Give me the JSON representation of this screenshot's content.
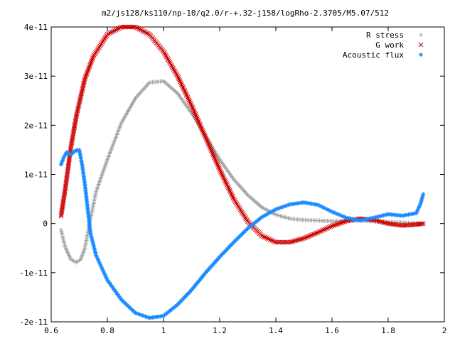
{
  "chart_data": {
    "type": "scatter",
    "title": "m2/js128/ks110/np-10/q2.0/r-+.32-j158/logRho-2.3705/M5.07/512",
    "xlabel": "",
    "ylabel": "",
    "xlim": [
      0.6,
      2.0
    ],
    "ylim": [
      -2e-11,
      4e-11
    ],
    "xticks": [
      0.6,
      0.8,
      1.0,
      1.2,
      1.4,
      1.6,
      1.8,
      2.0
    ],
    "xtick_labels": [
      "0.6",
      "0.8",
      "1",
      "1.2",
      "1.4",
      "1.6",
      "1.8",
      "2"
    ],
    "yticks": [
      -2e-11,
      -1e-11,
      0,
      1e-11,
      2e-11,
      3e-11,
      4e-11
    ],
    "ytick_labels": [
      "-2e-11",
      "-1e-11",
      "0",
      "1e-11",
      "2e-11",
      "3e-11",
      "4e-11"
    ],
    "grid": false,
    "legend_position": "top-right",
    "series": [
      {
        "name": "R stress",
        "marker": "+",
        "color": "#a0a0a0",
        "x": [
          0.635,
          0.65,
          0.67,
          0.69,
          0.705,
          0.72,
          0.74,
          0.76,
          0.8,
          0.85,
          0.9,
          0.95,
          1.0,
          1.05,
          1.1,
          1.15,
          1.2,
          1.25,
          1.3,
          1.35,
          1.4,
          1.45,
          1.5,
          1.6,
          1.7,
          1.8,
          1.9,
          1.925
        ],
        "y": [
          -1.3e-12,
          -4.8e-12,
          -7.3e-12,
          -7.9e-12,
          -7.3e-12,
          -5e-12,
          1e-12,
          6.5e-12,
          1.3e-11,
          2.05e-11,
          2.55e-11,
          2.87e-11,
          2.9e-11,
          2.65e-11,
          2.25e-11,
          1.78e-11,
          1.3e-11,
          9e-12,
          5.8e-12,
          3.3e-12,
          1.8e-12,
          1e-12,
          7e-13,
          5e-13,
          6e-13,
          3e-13,
          1e-13,
          0
        ]
      },
      {
        "name": "G work",
        "marker": "x",
        "color": "#cc0000",
        "x": [
          0.635,
          0.65,
          0.67,
          0.69,
          0.72,
          0.75,
          0.8,
          0.85,
          0.9,
          0.95,
          1.0,
          1.05,
          1.1,
          1.15,
          1.2,
          1.25,
          1.3,
          1.35,
          1.4,
          1.45,
          1.5,
          1.55,
          1.6,
          1.65,
          1.7,
          1.75,
          1.8,
          1.85,
          1.9,
          1.925
        ],
        "y": [
          1.5e-12,
          7e-12,
          1.55e-11,
          2.2e-11,
          2.95e-11,
          3.4e-11,
          3.85e-11,
          4e-11,
          4e-11,
          3.85e-11,
          3.5e-11,
          3e-11,
          2.4e-11,
          1.75e-11,
          1.1e-11,
          5e-12,
          4e-13,
          -2.5e-12,
          -3.8e-12,
          -3.8e-12,
          -3e-12,
          -1.8e-12,
          -5e-13,
          5e-13,
          1e-12,
          7e-13,
          0,
          -4e-13,
          -2e-13,
          0
        ]
      },
      {
        "name": "Acoustic flux",
        "marker": "*",
        "color": "#1a8cff",
        "x": [
          0.635,
          0.645,
          0.655,
          0.67,
          0.685,
          0.7,
          0.71,
          0.72,
          0.73,
          0.74,
          0.76,
          0.8,
          0.85,
          0.9,
          0.95,
          1.0,
          1.05,
          1.1,
          1.15,
          1.2,
          1.25,
          1.3,
          1.35,
          1.4,
          1.45,
          1.5,
          1.55,
          1.6,
          1.65,
          1.7,
          1.75,
          1.8,
          1.85,
          1.9,
          1.915,
          1.925
        ],
        "y": [
          1.2e-11,
          1.35e-11,
          1.45e-11,
          1.4e-11,
          1.48e-11,
          1.5e-11,
          1.2e-11,
          8e-12,
          3e-12,
          -2e-12,
          -6.5e-12,
          -1.15e-11,
          -1.55e-11,
          -1.82e-11,
          -1.92e-11,
          -1.88e-11,
          -1.65e-11,
          -1.35e-11,
          -1e-11,
          -6.8e-12,
          -3.8e-12,
          -1e-12,
          1.3e-12,
          2.9e-12,
          3.9e-12,
          4.3e-12,
          3.8e-12,
          2.4e-12,
          1.2e-12,
          6e-13,
          1.2e-12,
          1.9e-12,
          1.6e-12,
          2.1e-12,
          4e-12,
          6e-12
        ]
      }
    ]
  }
}
